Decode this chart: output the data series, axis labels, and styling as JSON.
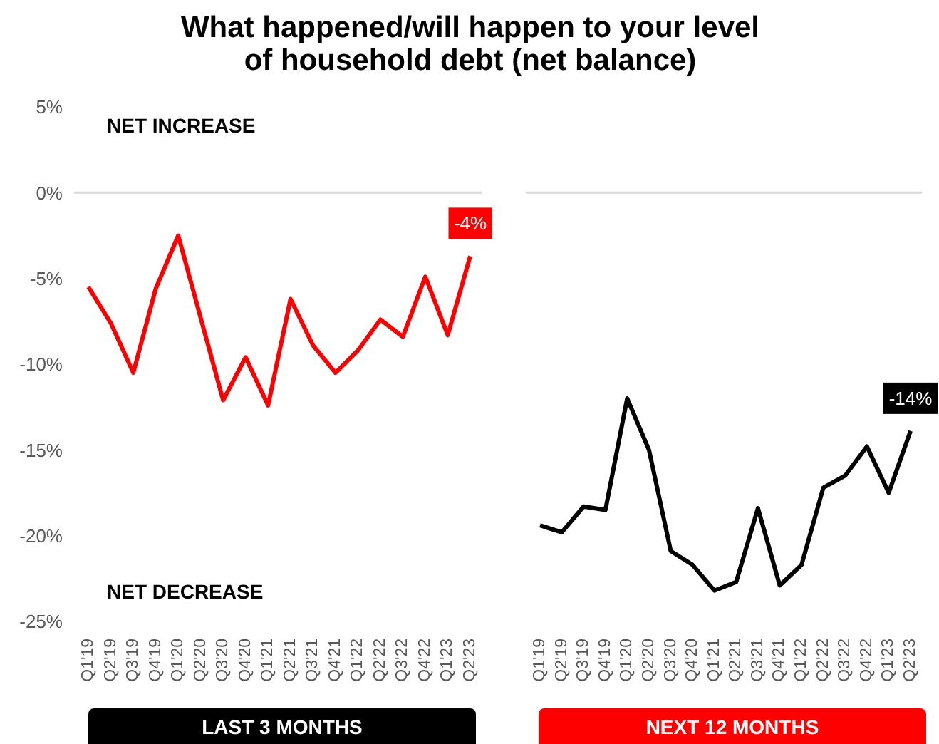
{
  "chart_data": [
    {
      "type": "line",
      "title": "What happened/will happen to your level of household debt (net balance)",
      "xlabel": "LAST 3 MONTHS",
      "annotations": [
        "NET INCREASE",
        "NET DECREASE"
      ],
      "categories": [
        "Q1'19",
        "Q2'19",
        "Q3'19",
        "Q4'19",
        "Q1'20",
        "Q2'20",
        "Q3'20",
        "Q4'20",
        "Q1'21",
        "Q2'21",
        "Q3'21",
        "Q4'21",
        "Q1'22",
        "Q2'22",
        "Q3'22",
        "Q4'22",
        "Q1'23",
        "Q2'23"
      ],
      "series": [
        {
          "color": "#ff0000",
          "values": [
            -5.5,
            -7.6,
            -10.5,
            -5.6,
            -2.5,
            -7.3,
            -12.1,
            -9.6,
            -12.4,
            -6.2,
            -8.9,
            -10.5,
            -9.2,
            -7.4,
            -8.4,
            -4.9,
            -8.3,
            -3.7
          ],
          "value_labels": [
            null,
            null,
            null,
            null,
            null,
            null,
            null,
            null,
            null,
            null,
            null,
            null,
            null,
            null,
            null,
            null,
            null,
            "-4%"
          ]
        }
      ],
      "ylim": [
        -25,
        5
      ],
      "yticks": [
        {
          "value": -25,
          "label": "-25%"
        },
        {
          "value": -20,
          "label": "-20%"
        },
        {
          "value": -15,
          "label": "-15%"
        },
        {
          "value": -10,
          "label": "-10%"
        },
        {
          "value": -5,
          "label": "-5%"
        },
        {
          "value": 0,
          "label": "0%"
        },
        {
          "value": 5,
          "label": "5%"
        }
      ],
      "ref_lines": [
        {
          "axis": "y",
          "value": 0,
          "color": "#d9d9d9"
        }
      ],
      "grid": false,
      "legend": false,
      "marker": "none"
    },
    {
      "type": "line",
      "xlabel": "NEXT 12 MONTHS",
      "categories": [
        "Q1'19",
        "Q2'19",
        "Q3'19",
        "Q4'19",
        "Q1'20",
        "Q2'20",
        "Q3'20",
        "Q4'20",
        "Q1'21",
        "Q2'21",
        "Q3'21",
        "Q4'21",
        "Q1'22",
        "Q2'22",
        "Q3'22",
        "Q4'22",
        "Q1'23",
        "Q2'23"
      ],
      "series": [
        {
          "color": "#000000",
          "values": [
            -19.4,
            -19.8,
            -18.3,
            -18.5,
            -12.0,
            -15.0,
            -20.9,
            -21.7,
            -23.2,
            -22.7,
            -18.4,
            -22.9,
            -21.7,
            -17.2,
            -16.5,
            -14.8,
            -17.5,
            -13.9
          ],
          "value_labels": [
            null,
            null,
            null,
            null,
            null,
            null,
            null,
            null,
            null,
            null,
            null,
            null,
            null,
            null,
            null,
            null,
            null,
            "-14%"
          ]
        }
      ],
      "ylim": [
        -25,
        5
      ],
      "tick_labels": "x",
      "ref_lines": [
        {
          "axis": "y",
          "value": 0,
          "color": "#d9d9d9"
        }
      ],
      "grid": false,
      "legend": false,
      "marker": "none"
    }
  ]
}
